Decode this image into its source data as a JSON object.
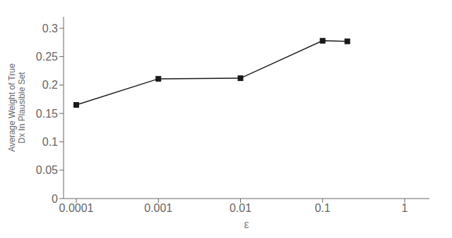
{
  "chart_data": {
    "type": "line",
    "x": [
      0.0001,
      0.001,
      0.01,
      0.1,
      0.2
    ],
    "values": [
      0.165,
      0.211,
      0.212,
      0.278,
      0.277
    ],
    "color": "#1a1a1a",
    "marker": "square",
    "log": "x",
    "xlim": [
      7e-05,
      2.0
    ],
    "xticks": [
      0.0001,
      0.001,
      0.01,
      0.1,
      1
    ],
    "ylim": [
      0,
      0.32
    ],
    "yticks": [
      0,
      0.05,
      0.1,
      0.15,
      0.2,
      0.25,
      0.3
    ],
    "xlabel": "ε",
    "ylabel": "Average Weight of True\nDx In Plausible Set",
    "grid": false
  }
}
